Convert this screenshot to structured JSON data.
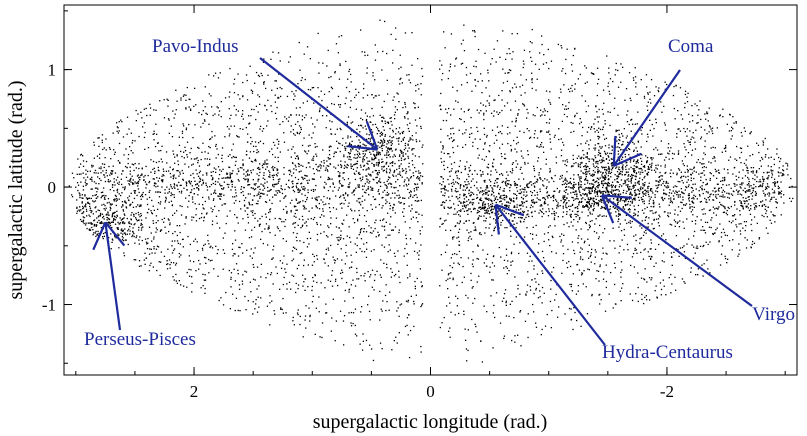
{
  "chart_data": {
    "type": "scatter",
    "title": "",
    "xlabel": "supergalactic longitude (rad.)",
    "ylabel": "supergalactic latitude (rad.)",
    "xlim": [
      3.1,
      -3.1
    ],
    "ylim": [
      -1.6,
      1.55
    ],
    "x_ticks": [
      2,
      0,
      -2
    ],
    "y_ticks": [
      1,
      0,
      -1
    ],
    "grid": false,
    "point_color": "#000000",
    "annotation_color": "#1f2b9c",
    "annotations": [
      {
        "text": "Pavo-Indus",
        "target": [
          0.45,
          0.32
        ]
      },
      {
        "text": "Coma",
        "target": [
          -1.55,
          0.18
        ]
      },
      {
        "text": "Perseus-Pisces",
        "target": [
          2.75,
          -0.3
        ]
      },
      {
        "text": "Virgo",
        "target": [
          -1.45,
          -0.07
        ]
      },
      {
        "text": "Hydra-Centaurus",
        "target": [
          -0.55,
          -0.15
        ]
      }
    ],
    "clusters": [
      {
        "name": "Pavo-Indus",
        "x": 0.45,
        "y": 0.32
      },
      {
        "name": "Coma",
        "x": -1.55,
        "y": 0.18
      },
      {
        "name": "Perseus-Pisces",
        "x": 2.75,
        "y": -0.3
      },
      {
        "name": "Virgo",
        "x": -1.45,
        "y": -0.07
      },
      {
        "name": "Hydra-Centaurus",
        "x": -0.55,
        "y": -0.15
      }
    ]
  }
}
